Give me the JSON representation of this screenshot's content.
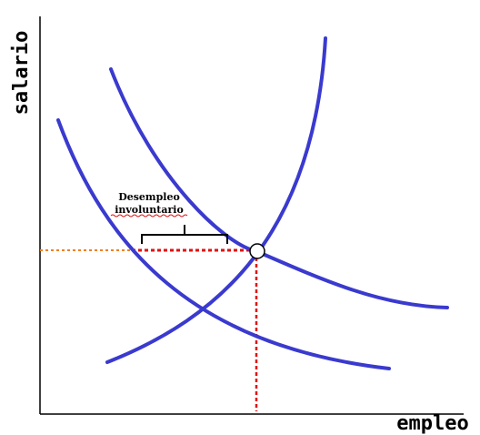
{
  "axes": {
    "y_label": "salario",
    "x_label": "empleo"
  },
  "annotation": {
    "line1": "Desempleo",
    "line2": "involuntario"
  },
  "colors": {
    "curve": "#3a3acf",
    "equilibrium_guides": "#e01010",
    "wage_guide": "#f08020",
    "axis": "#000000",
    "marker_fill": "#ffffff"
  }
}
